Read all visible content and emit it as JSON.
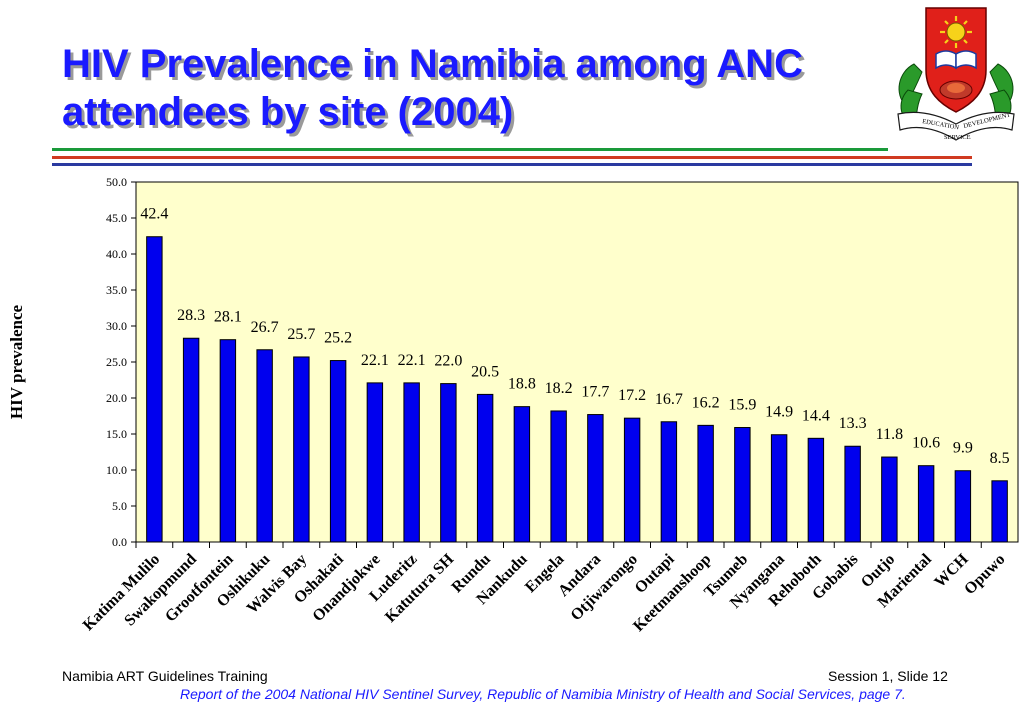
{
  "slide": {
    "title_line1": "HIV Prevalence in Namibia among ANC",
    "title_line2": "attendees by site (2004)",
    "footer_left": "Namibia ART Guidelines Training",
    "footer_right": "Session 1, Slide 12",
    "source": "Report of the 2004 National HIV Sentinel Survey, Republic of Namibia Ministry of Health and Social Services, page 7.",
    "logo": {
      "banner_top": "EDUCATION",
      "banner_right": "DEVELOPMENT",
      "banner_bottom": "SERVICE"
    },
    "colors": {
      "title": "#1a1aff",
      "bar": "#0000ee",
      "plot_bg": "#ffffcc",
      "rule_green": "#1a9a3a",
      "rule_red": "#d03a20",
      "rule_blue": "#2a3aa0"
    }
  },
  "chart_data": {
    "type": "bar",
    "title": "HIV Prevalence in Namibia among ANC attendees by site (2004)",
    "xlabel": "",
    "ylabel": "HIV prevalence",
    "ylim": [
      0,
      50
    ],
    "yticks": [
      "0.0",
      "5.0",
      "10.0",
      "15.0",
      "20.0",
      "25.0",
      "30.0",
      "35.0",
      "40.0",
      "45.0",
      "50.0"
    ],
    "grid": false,
    "legend": "none",
    "categories": [
      "Katima Mulilo",
      "Swakopmund",
      "Grootfontein",
      "Oshikuku",
      "Walvis Bay",
      "Oshakati",
      "Onandjokwe",
      "Luderitz",
      "Katutura SH",
      "Rundu",
      "Nankudu",
      "Engela",
      "Andara",
      "Otjiwarongo",
      "Outapi",
      "Keetmanshoop",
      "Tsumeb",
      "Nyangana",
      "Rehoboth",
      "Gobabis",
      "Outjo",
      "Mariental",
      "WCH",
      "Opuwo"
    ],
    "values": [
      42.4,
      28.3,
      28.1,
      26.7,
      25.7,
      25.2,
      22.1,
      22.1,
      22.0,
      20.5,
      18.8,
      18.2,
      17.7,
      17.2,
      16.7,
      16.2,
      15.9,
      14.9,
      14.4,
      13.3,
      11.8,
      10.6,
      9.9,
      8.5
    ],
    "value_labels": [
      "42.4",
      "28.3",
      "28.1",
      "26.7",
      "25.7",
      "25.2",
      "22.1",
      "22.1",
      "22.0",
      "20.5",
      "18.8",
      "18.2",
      "17.7",
      "17.2",
      "16.7",
      "16.2",
      "15.9",
      "14.9",
      "14.4",
      "13.3",
      "11.8",
      "10.6",
      "9.9",
      "8.5"
    ]
  }
}
